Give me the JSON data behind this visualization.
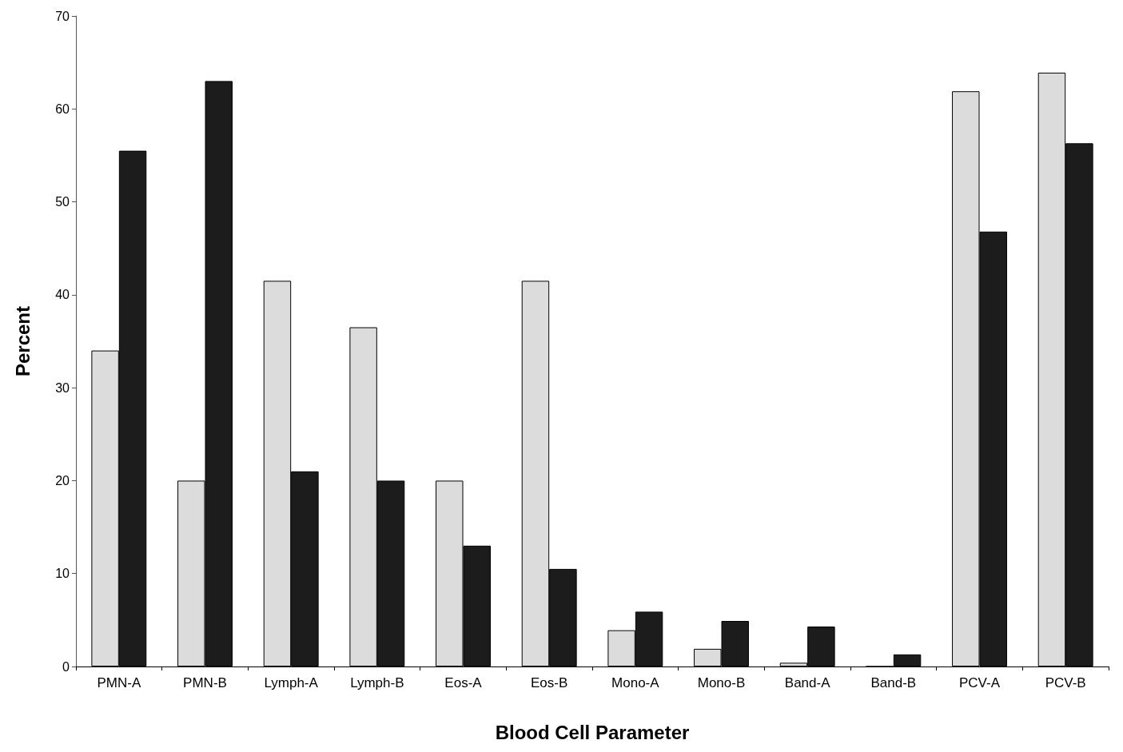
{
  "chart_data": {
    "type": "bar",
    "xlabel": "Blood Cell Parameter",
    "ylabel": "Percent",
    "categories": [
      "PMN-A",
      "PMN-B",
      "Lymph-A",
      "Lymph-B",
      "Eos-A",
      "Eos-B",
      "Mono-A",
      "Mono-B",
      "Band-A",
      "Band-B",
      "PCV-A",
      "PCV-B"
    ],
    "series": [
      {
        "color": "#dcdcdc",
        "values": [
          34,
          20,
          41.5,
          36.5,
          20,
          41.5,
          3.9,
          1.9,
          0.4,
          0,
          61.9,
          63.9
        ]
      },
      {
        "color": "#1c1c1c",
        "values": [
          55.5,
          63,
          21,
          20,
          13,
          10.5,
          5.9,
          4.9,
          4.3,
          1.3,
          46.8,
          56.3
        ]
      }
    ],
    "ylim": [
      0,
      70
    ],
    "yticks": [
      0,
      10,
      20,
      30,
      40,
      50,
      60,
      70
    ],
    "grid": false
  }
}
